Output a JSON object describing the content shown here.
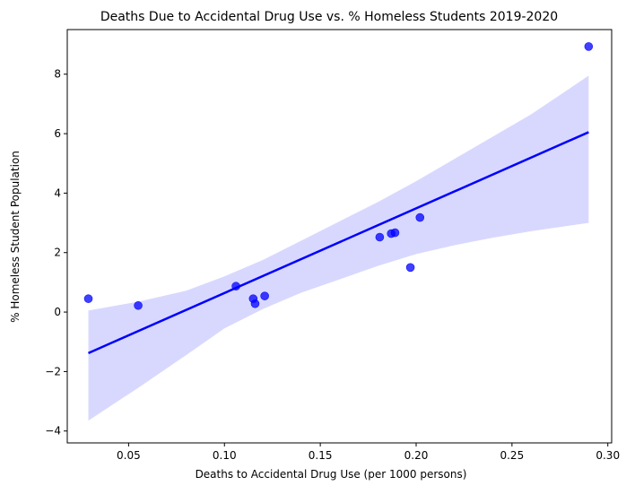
{
  "chart_data": {
    "type": "scatter",
    "title": "Deaths Due to Accidental Drug Use vs. % Homeless Students 2019-2020",
    "xlabel": "Deaths to Accidental Drug Use (per 1000 persons)",
    "ylabel": "% Homeless Student Population",
    "xlim": [
      0.018,
      0.302
    ],
    "ylim": [
      -4.4,
      9.5
    ],
    "x_ticks": [
      0.05,
      0.1,
      0.15,
      0.2,
      0.25,
      0.3
    ],
    "x_tick_labels": [
      "0.05",
      "0.10",
      "0.15",
      "0.20",
      "0.25",
      "0.30"
    ],
    "y_ticks": [
      -4,
      -2,
      0,
      2,
      4,
      6,
      8
    ],
    "y_tick_labels": [
      "−4",
      "−2",
      "0",
      "2",
      "4",
      "6",
      "8"
    ],
    "grid": false,
    "legend": "none",
    "points": [
      {
        "x": 0.029,
        "y": 0.45
      },
      {
        "x": 0.055,
        "y": 0.22
      },
      {
        "x": 0.106,
        "y": 0.87
      },
      {
        "x": 0.115,
        "y": 0.45
      },
      {
        "x": 0.116,
        "y": 0.28
      },
      {
        "x": 0.121,
        "y": 0.54
      },
      {
        "x": 0.181,
        "y": 2.52
      },
      {
        "x": 0.187,
        "y": 2.64
      },
      {
        "x": 0.189,
        "y": 2.67
      },
      {
        "x": 0.197,
        "y": 1.5
      },
      {
        "x": 0.202,
        "y": 3.18
      },
      {
        "x": 0.29,
        "y": 8.93
      }
    ],
    "regression_line": [
      {
        "x": 0.029,
        "y": -1.38
      },
      {
        "x": 0.29,
        "y": 6.05
      }
    ],
    "confidence_band": {
      "upper": [
        {
          "x": 0.029,
          "y": 0.05
        },
        {
          "x": 0.055,
          "y": 0.35
        },
        {
          "x": 0.08,
          "y": 0.72
        },
        {
          "x": 0.1,
          "y": 1.2
        },
        {
          "x": 0.12,
          "y": 1.75
        },
        {
          "x": 0.14,
          "y": 2.4
        },
        {
          "x": 0.16,
          "y": 3.05
        },
        {
          "x": 0.18,
          "y": 3.7
        },
        {
          "x": 0.2,
          "y": 4.4
        },
        {
          "x": 0.22,
          "y": 5.15
        },
        {
          "x": 0.24,
          "y": 5.9
        },
        {
          "x": 0.26,
          "y": 6.65
        },
        {
          "x": 0.29,
          "y": 7.95
        }
      ],
      "lower": [
        {
          "x": 0.029,
          "y": -3.65
        },
        {
          "x": 0.055,
          "y": -2.55
        },
        {
          "x": 0.08,
          "y": -1.45
        },
        {
          "x": 0.1,
          "y": -0.55
        },
        {
          "x": 0.12,
          "y": 0.1
        },
        {
          "x": 0.14,
          "y": 0.65
        },
        {
          "x": 0.16,
          "y": 1.1
        },
        {
          "x": 0.18,
          "y": 1.55
        },
        {
          "x": 0.2,
          "y": 1.95
        },
        {
          "x": 0.22,
          "y": 2.25
        },
        {
          "x": 0.24,
          "y": 2.5
        },
        {
          "x": 0.26,
          "y": 2.72
        },
        {
          "x": 0.29,
          "y": 3.0
        }
      ]
    },
    "colors": {
      "points": "#0000ff",
      "line": "#0000ff",
      "band": "#d8d8ff",
      "axis": "#000000"
    }
  }
}
